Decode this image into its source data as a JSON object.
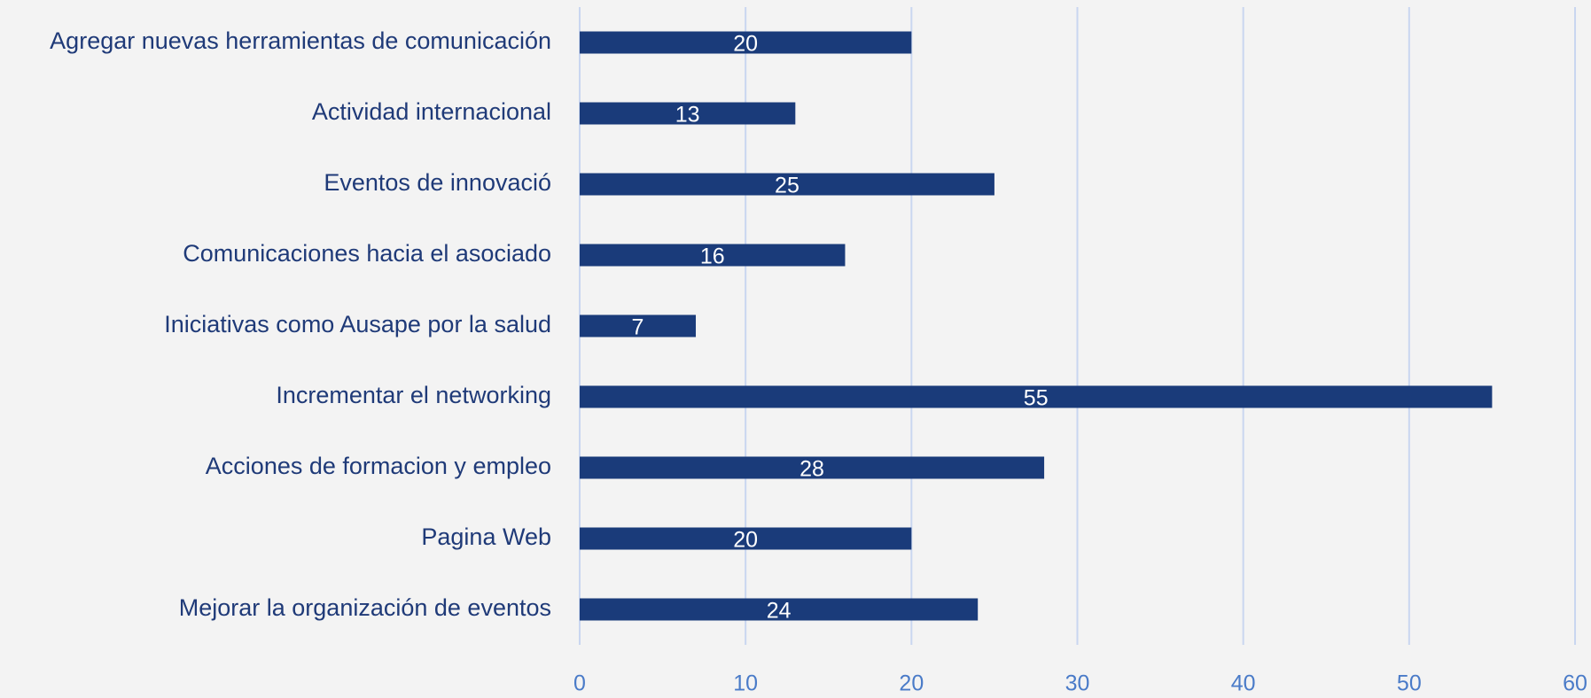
{
  "chart_data": {
    "type": "bar",
    "orientation": "horizontal",
    "categories": [
      "Agregar nuevas herramientas de comunicación",
      "Actividad internacional",
      "Eventos de innovació",
      "Comunicaciones hacia el asociado",
      "Iniciativas como Ausape por la salud",
      "Incrementar el networking",
      "Acciones de formacion y empleo",
      "Pagina Web",
      "Mejorar la organización de eventos"
    ],
    "values": [
      20,
      13,
      25,
      16,
      7,
      55,
      28,
      20,
      24
    ],
    "color": "#1a3b7a",
    "xlim": [
      0,
      60
    ],
    "xticks": [
      0,
      10,
      20,
      30,
      40,
      50,
      60
    ],
    "grid": true
  }
}
